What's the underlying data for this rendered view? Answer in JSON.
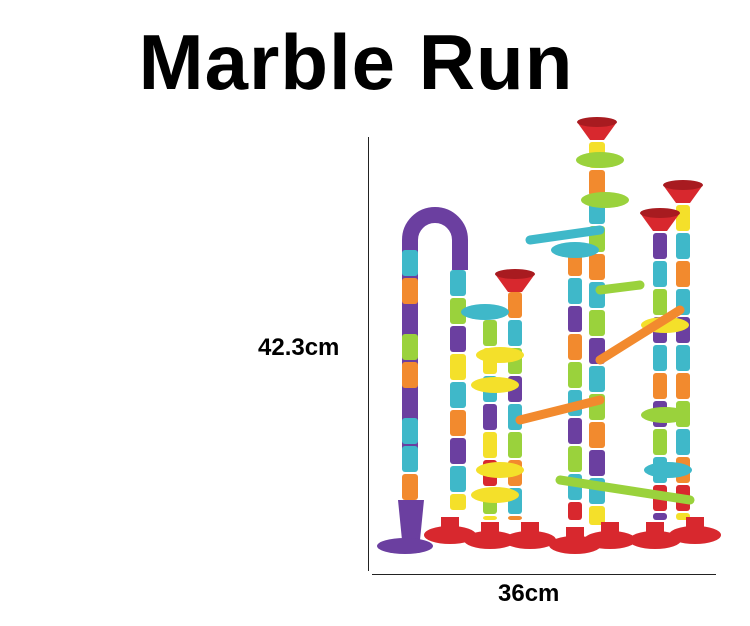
{
  "title": "Marble Run",
  "dimensions": {
    "height": "42.3cm",
    "width": "36cm"
  },
  "palette": {
    "purple": "#6b3fa0",
    "cyan": "#3fb8c9",
    "orange": "#f28a2e",
    "green": "#9ad23c",
    "yellow": "#f4e02a",
    "red": "#d8282e"
  }
}
